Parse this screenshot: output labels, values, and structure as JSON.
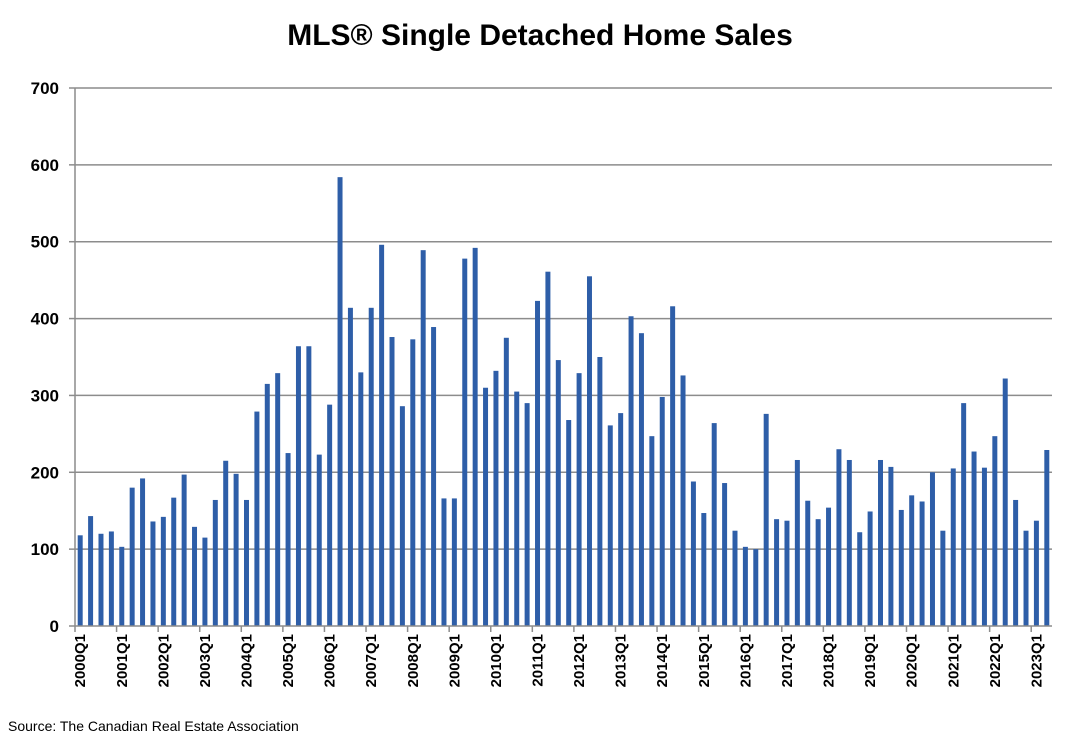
{
  "chart_data": {
    "type": "bar",
    "title": "MLS® Single Detached Home Sales",
    "xlabel": "",
    "ylabel": "",
    "ylim": [
      0,
      700
    ],
    "yticks": [
      0,
      100,
      200,
      300,
      400,
      500,
      600,
      700
    ],
    "grid": true,
    "legend": "none",
    "bar_color": "#2e5ea8",
    "grid_color": "#8c8c8c",
    "x_tick_labels": [
      "2000Q1",
      "2001Q1",
      "2002Q1",
      "2003Q1",
      "2004Q1",
      "2005Q1",
      "2006Q1",
      "2007Q1",
      "2008Q1",
      "2009Q1",
      "2010Q1",
      "2011Q1",
      "2012Q1",
      "2013Q1",
      "2014Q1",
      "2015Q1",
      "2016Q1",
      "2017Q1",
      "2018Q1",
      "2019Q1",
      "2020Q1",
      "2021Q1",
      "2022Q1",
      "2023Q1"
    ],
    "categories": [
      "2000Q1",
      "2000Q2",
      "2000Q3",
      "2000Q4",
      "2001Q1",
      "2001Q2",
      "2001Q3",
      "2001Q4",
      "2002Q1",
      "2002Q2",
      "2002Q3",
      "2002Q4",
      "2003Q1",
      "2003Q2",
      "2003Q3",
      "2003Q4",
      "2004Q1",
      "2004Q2",
      "2004Q3",
      "2004Q4",
      "2005Q1",
      "2005Q2",
      "2005Q3",
      "2005Q4",
      "2006Q1",
      "2006Q2",
      "2006Q3",
      "2006Q4",
      "2007Q1",
      "2007Q2",
      "2007Q3",
      "2007Q4",
      "2008Q1",
      "2008Q2",
      "2008Q3",
      "2008Q4",
      "2009Q1",
      "2009Q2",
      "2009Q3",
      "2009Q4",
      "2010Q1",
      "2010Q2",
      "2010Q3",
      "2010Q4",
      "2011Q1",
      "2011Q2",
      "2011Q3",
      "2011Q4",
      "2012Q1",
      "2012Q2",
      "2012Q3",
      "2012Q4",
      "2013Q1",
      "2013Q2",
      "2013Q3",
      "2013Q4",
      "2014Q1",
      "2014Q2",
      "2014Q3",
      "2014Q4",
      "2015Q1",
      "2015Q2",
      "2015Q3",
      "2015Q4",
      "2016Q1",
      "2016Q2",
      "2016Q3",
      "2016Q4",
      "2017Q1",
      "2017Q2",
      "2017Q3",
      "2017Q4",
      "2018Q1",
      "2018Q2",
      "2018Q3",
      "2018Q4",
      "2019Q1",
      "2019Q2",
      "2019Q3",
      "2019Q4",
      "2020Q1",
      "2020Q2",
      "2020Q3",
      "2020Q4",
      "2021Q1",
      "2021Q2",
      "2021Q3",
      "2021Q4",
      "2022Q1",
      "2022Q2",
      "2022Q3",
      "2022Q4",
      "2023Q1",
      "2023Q2"
    ],
    "values": [
      118,
      143,
      120,
      123,
      103,
      180,
      192,
      136,
      142,
      167,
      197,
      129,
      115,
      164,
      215,
      198,
      164,
      279,
      315,
      329,
      225,
      364,
      364,
      223,
      288,
      584,
      414,
      330,
      414,
      496,
      376,
      286,
      373,
      489,
      389,
      166,
      166,
      478,
      492,
      310,
      332,
      375,
      305,
      290,
      423,
      461,
      346,
      268,
      329,
      455,
      350,
      261,
      277,
      403,
      381,
      247,
      298,
      416,
      326,
      188,
      147,
      264,
      186,
      124,
      103,
      100,
      276,
      139,
      137,
      216,
      163,
      139,
      154,
      230,
      216,
      122,
      149,
      216,
      207,
      151,
      170,
      162,
      200,
      124,
      205,
      290,
      227,
      206,
      247,
      322,
      164,
      124,
      137,
      229
    ]
  },
  "source": "Source: The Canadian Real Estate Association"
}
